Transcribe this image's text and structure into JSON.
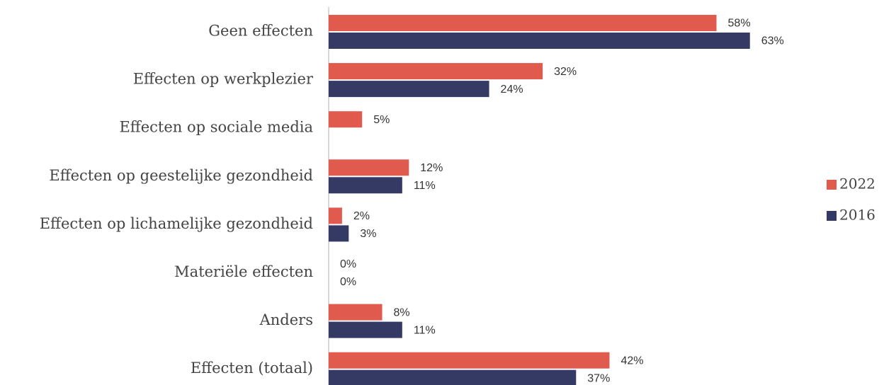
{
  "chart_data": {
    "type": "barh",
    "categories": [
      "Geen effecten",
      "Effecten op werkplezier",
      "Effecten op sociale media",
      "Effecten op geestelijke gezondheid",
      "Effecten op lichamelijke gezondheid",
      "Materiële effecten",
      "Anders",
      "Effecten (totaal)"
    ],
    "series": [
      {
        "name": "2022",
        "color": "#e05a4e",
        "values": [
          58,
          32,
          5,
          12,
          2,
          0,
          8,
          42
        ],
        "value_labels": [
          "58%",
          "32%",
          "5%",
          "12%",
          "2%",
          "0%",
          "8%",
          "42%"
        ]
      },
      {
        "name": "2016",
        "color": "#343a63",
        "values": [
          63,
          24,
          null,
          11,
          3,
          0,
          11,
          37
        ],
        "value_labels": [
          "63%",
          "24%",
          null,
          "11%",
          "3%",
          "0%",
          "11%",
          "37%"
        ]
      }
    ],
    "legend": "right"
  }
}
